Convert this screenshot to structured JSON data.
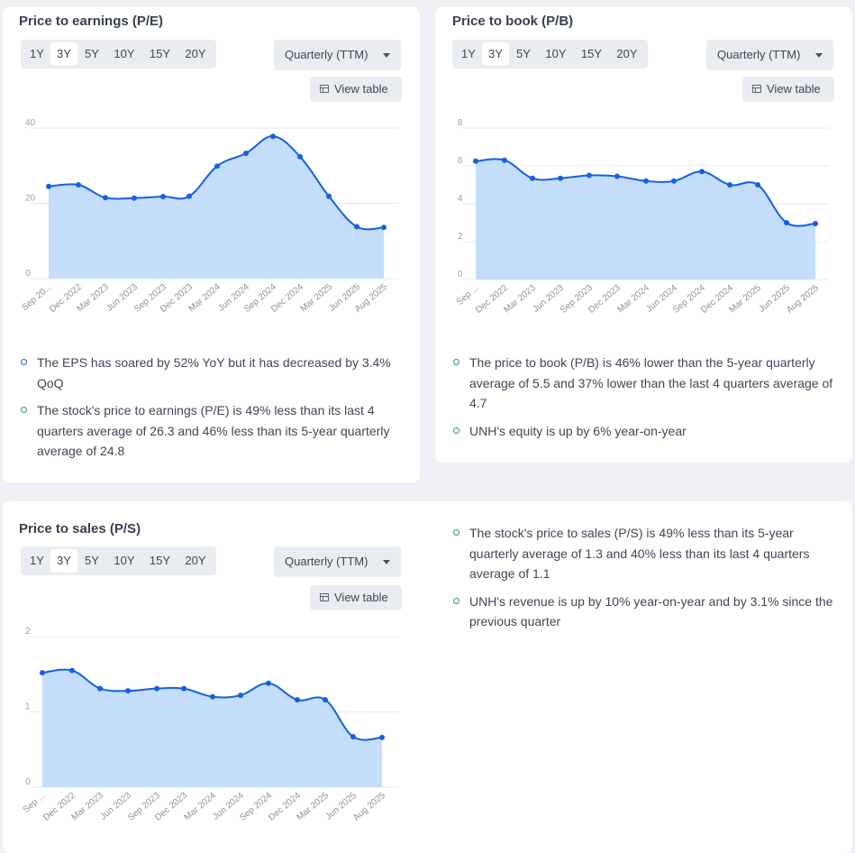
{
  "periods": [
    "1Y",
    "3Y",
    "5Y",
    "10Y",
    "15Y",
    "20Y"
  ],
  "active_period": "3Y",
  "frequency_label": "Quarterly (TTM)",
  "view_table_label": "View table",
  "colors": {
    "line": "#1560e0",
    "area": "#c4ddfa",
    "grid": "#e7e9ed",
    "up": "#2a9d55",
    "info": "#1f5fd6"
  },
  "icons": [
    "table-icon",
    "caret-down-icon",
    "circle-bullet-icon"
  ],
  "pe": {
    "title": "Price to earnings (P/E)",
    "bullets": [
      {
        "color": "blue",
        "text": "The EPS has soared by 52% YoY but it has decreased by 3.4% QoQ"
      },
      {
        "color": "green",
        "text": "The stock's price to earnings (P/E) is 49% less than its last 4 quarters average of 26.3 and 46% less than its 5-year quarterly average of 24.8"
      }
    ]
  },
  "pb": {
    "title": "Price to book (P/B)",
    "bullets": [
      {
        "color": "green",
        "text": "The price to book (P/B) is 46% lower than the 5-year quarterly average of 5.5 and 37% lower than the last 4 quarters average of 4.7"
      },
      {
        "color": "green",
        "text": "UNH's equity is up by 6% year-on-year"
      }
    ]
  },
  "ps": {
    "title": "Price to sales (P/S)",
    "bullets": [
      {
        "color": "green",
        "text": "The stock's price to sales (P/S) is 49% less than its 5-year quarterly average of 1.3 and 40% less than its last 4 quarters average of 1.1"
      },
      {
        "color": "green",
        "text": "UNH's revenue is up by 10% year-on-year and by 3.1% since the previous quarter"
      }
    ]
  },
  "chart_data": [
    {
      "type": "area",
      "title": "Price to earnings (P/E)",
      "categories": [
        "Sep 20...",
        "Dec 2022",
        "Mar 2023",
        "Jun 2023",
        "Sep 2023",
        "Dec 2023",
        "Mar 2024",
        "Jun 2024",
        "Sep 2024",
        "Dec 2024",
        "Mar 2025",
        "Jun 2025",
        "Aug 2025"
      ],
      "values": [
        24.5,
        24.9,
        21.5,
        21.4,
        21.8,
        21.9,
        29.9,
        33.3,
        37.8,
        32.4,
        21.9,
        13.8,
        13.6
      ],
      "yticks": [
        0,
        20,
        40
      ],
      "ylim": [
        0,
        40
      ],
      "grid": true
    },
    {
      "type": "area",
      "title": "Price to book (P/B)",
      "categories": [
        "Sep ...",
        "Dec 2022",
        "Mar 2023",
        "Jun 2023",
        "Sep 2023",
        "Dec 2023",
        "Mar 2024",
        "Jun 2024",
        "Sep 2024",
        "Dec 2024",
        "Mar 2025",
        "Jun 2025",
        "Aug 2025"
      ],
      "values": [
        6.25,
        6.3,
        5.35,
        5.35,
        5.5,
        5.45,
        5.2,
        5.2,
        5.7,
        5.0,
        5.0,
        3.0,
        2.95
      ],
      "yticks": [
        0,
        2,
        4,
        6,
        8
      ],
      "ylim": [
        0,
        8
      ],
      "grid": true
    },
    {
      "type": "area",
      "title": "Price to sales (P/S)",
      "categories": [
        "Sep ...",
        "Dec 2022",
        "Mar 2023",
        "Jun 2023",
        "Sep 2023",
        "Dec 2023",
        "Mar 2024",
        "Jun 2024",
        "Sep 2024",
        "Dec 2024",
        "Mar 2025",
        "Jun 2025",
        "Aug 2025"
      ],
      "values": [
        1.52,
        1.55,
        1.31,
        1.28,
        1.31,
        1.31,
        1.2,
        1.22,
        1.38,
        1.16,
        1.16,
        0.67,
        0.66
      ],
      "yticks": [
        0,
        1,
        2
      ],
      "ylim": [
        0,
        2
      ],
      "grid": true
    }
  ]
}
